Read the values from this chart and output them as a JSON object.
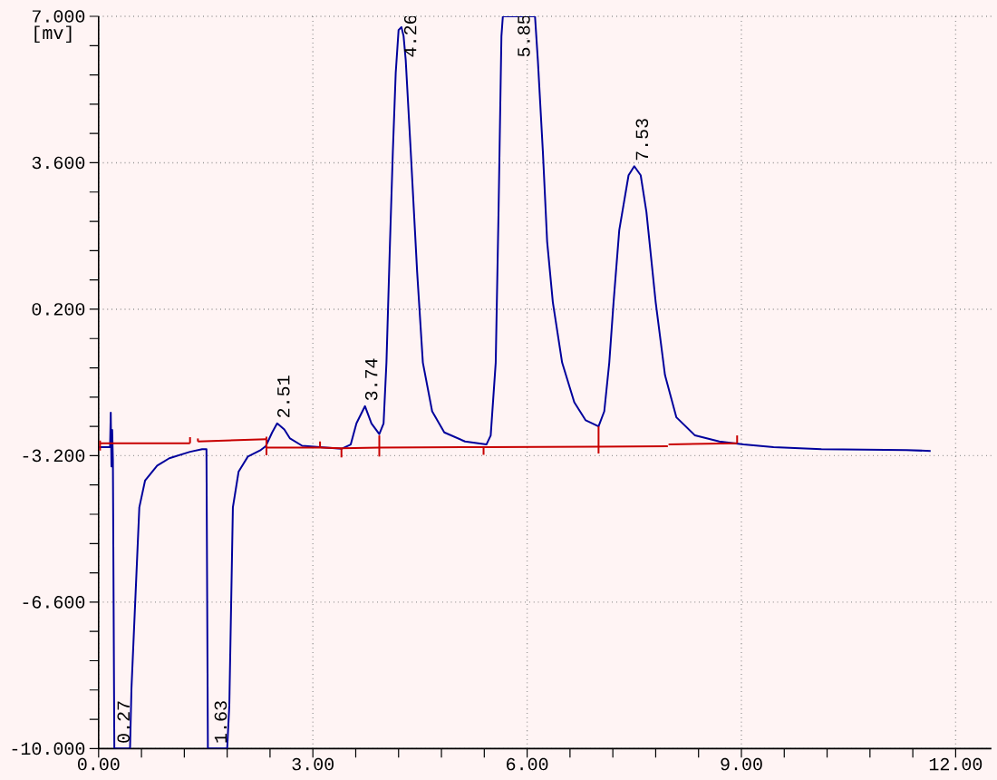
{
  "chart_data": {
    "type": "line",
    "ylabel": "[mv]",
    "xlim": [
      0,
      12.5
    ],
    "ylim": [
      -10,
      7
    ],
    "xticks": [
      {
        "value": 0,
        "label": "0.00"
      },
      {
        "value": 0.6,
        "label": null
      },
      {
        "value": 1.2,
        "label": null
      },
      {
        "value": 1.8,
        "label": null
      },
      {
        "value": 2.4,
        "label": null
      },
      {
        "value": 3,
        "label": "3.00"
      },
      {
        "value": 3.6,
        "label": null
      },
      {
        "value": 4.2,
        "label": null
      },
      {
        "value": 4.8,
        "label": null
      },
      {
        "value": 5.4,
        "label": null
      },
      {
        "value": 6,
        "label": "6.00"
      },
      {
        "value": 6.6,
        "label": null
      },
      {
        "value": 7.2,
        "label": null
      },
      {
        "value": 7.8,
        "label": null
      },
      {
        "value": 8.4,
        "label": null
      },
      {
        "value": 9,
        "label": "9.00"
      },
      {
        "value": 9.6,
        "label": null
      },
      {
        "value": 10.2,
        "label": null
      },
      {
        "value": 10.8,
        "label": null
      },
      {
        "value": 11.4,
        "label": null
      },
      {
        "value": 12,
        "label": "12.00"
      }
    ],
    "yticks": [
      {
        "value": -10,
        "label": "-10.000"
      },
      {
        "value": -9.32,
        "label": null
      },
      {
        "value": -8.64,
        "label": null
      },
      {
        "value": -7.96,
        "label": null
      },
      {
        "value": -7.28,
        "label": null
      },
      {
        "value": -6.6,
        "label": "-6.600"
      },
      {
        "value": -5.92,
        "label": null
      },
      {
        "value": -5.24,
        "label": null
      },
      {
        "value": -4.56,
        "label": null
      },
      {
        "value": -3.88,
        "label": null
      },
      {
        "value": -3.2,
        "label": "-3.200"
      },
      {
        "value": -2.52,
        "label": null
      },
      {
        "value": -1.84,
        "label": null
      },
      {
        "value": -1.16,
        "label": null
      },
      {
        "value": -0.48,
        "label": null
      },
      {
        "value": 0.2,
        "label": "0.200"
      },
      {
        "value": 0.88,
        "label": null
      },
      {
        "value": 1.56,
        "label": null
      },
      {
        "value": 2.24,
        "label": null
      },
      {
        "value": 2.92,
        "label": null
      },
      {
        "value": 3.6,
        "label": "3.600"
      },
      {
        "value": 4.28,
        "label": null
      },
      {
        "value": 4.96,
        "label": null
      },
      {
        "value": 5.64,
        "label": null
      },
      {
        "value": 6.32,
        "label": null
      },
      {
        "value": 7,
        "label": "7.000"
      }
    ],
    "grid": true,
    "series": [
      {
        "color": "#00009c",
        "x": [
          0,
          0.16,
          0.17,
          0.18,
          0.19,
          0.2,
          0.22,
          0.44,
          0.46,
          0.57,
          0.65,
          0.82,
          0.99,
          1.28,
          1.45,
          1.51,
          1.53,
          1.8,
          1.83,
          1.88,
          1.96,
          2.09,
          2.26,
          2.34,
          2.43,
          2.5,
          2.6,
          2.68,
          2.85,
          3.1,
          3.4,
          3.53,
          3.61,
          3.73,
          3.82,
          3.93,
          3.99,
          4.03,
          4.08,
          4.12,
          4.16,
          4.2,
          4.24,
          4.27,
          4.3,
          4.37,
          4.46,
          4.54,
          4.67,
          4.84,
          5.13,
          5.43,
          5.49,
          5.56,
          5.6,
          5.64,
          5.66,
          6.11,
          6.15,
          6.22,
          6.28,
          6.36,
          6.49,
          6.66,
          6.82,
          7.0,
          7.08,
          7.15,
          7.21,
          7.29,
          7.42,
          7.5,
          7.59,
          7.67,
          7.8,
          7.93,
          8.09,
          8.35,
          8.69,
          9.03,
          9.45,
          10.12,
          11.31,
          11.65
        ],
        "values": [
          -3.0,
          -3.0,
          -2.2,
          -3.45,
          -2.6,
          -3.3,
          -10,
          -10,
          -8.6,
          -4.4,
          -3.78,
          -3.43,
          -3.26,
          -3.11,
          -3.05,
          -3.05,
          -10,
          -10,
          -9.0,
          -4.4,
          -3.57,
          -3.22,
          -3.08,
          -2.98,
          -2.66,
          -2.45,
          -2.59,
          -2.8,
          -2.97,
          -3.0,
          -3.04,
          -2.94,
          -2.45,
          -2.05,
          -2.45,
          -2.7,
          -2.45,
          -1.04,
          1.77,
          3.87,
          5.69,
          6.68,
          6.75,
          6.54,
          5.98,
          3.87,
          1.06,
          -1.04,
          -2.17,
          -2.66,
          -2.87,
          -2.94,
          -2.73,
          -1.04,
          2.5,
          6.54,
          7.0,
          7.0,
          5.98,
          3.87,
          1.77,
          0.36,
          -1.04,
          -1.96,
          -2.38,
          -2.52,
          -2.17,
          -1.04,
          0.36,
          2.04,
          3.31,
          3.52,
          3.31,
          2.46,
          0.36,
          -1.33,
          -2.31,
          -2.73,
          -2.87,
          -2.94,
          -3.0,
          -3.05,
          -3.07,
          -3.09
        ]
      },
      {
        "color": "#c80000",
        "x": [
          0.02,
          1.28,
          null,
          1.39,
          2.35,
          null,
          2.36,
          3.1,
          3.4,
          3.93,
          5.39,
          7.0,
          7.97,
          null,
          7.98,
          8.94
        ],
        "values": [
          -2.91,
          -2.91,
          null,
          -2.87,
          -2.82,
          null,
          -3.01,
          -3.01,
          -3.03,
          -3.01,
          -3.0,
          -2.99,
          -2.98,
          null,
          -2.94,
          -2.91
        ],
        "errors": [
          [
            -3.08,
            -2.85
          ],
          [
            -2.91,
            -2.77
          ],
          null,
          [
            -2.87,
            -2.8
          ],
          [
            -3.19,
            -2.76
          ],
          null,
          null,
          [
            -3.01,
            -2.87
          ],
          [
            -3.24,
            -3.03
          ],
          [
            -3.22,
            -2.73
          ],
          [
            -3.18,
            -3.0
          ],
          [
            -3.15,
            -2.52
          ],
          null,
          null,
          null,
          [
            -2.91,
            -2.73
          ]
        ]
      }
    ],
    "annotations": [
      {
        "text": "0.27",
        "x": 0.27,
        "y": -10
      },
      {
        "text": "1.63",
        "x": 1.63,
        "y": -10
      },
      {
        "text": "2.51",
        "x": 2.51,
        "y": -2.45
      },
      {
        "text": "3.74",
        "x": 3.74,
        "y": -2.05
      },
      {
        "text": "4.26",
        "x": 4.26,
        "y": 6.75
      },
      {
        "text": "5.85",
        "x": 5.85,
        "y": 7
      },
      {
        "text": "7.53",
        "x": 7.53,
        "y": 3.52
      }
    ]
  }
}
